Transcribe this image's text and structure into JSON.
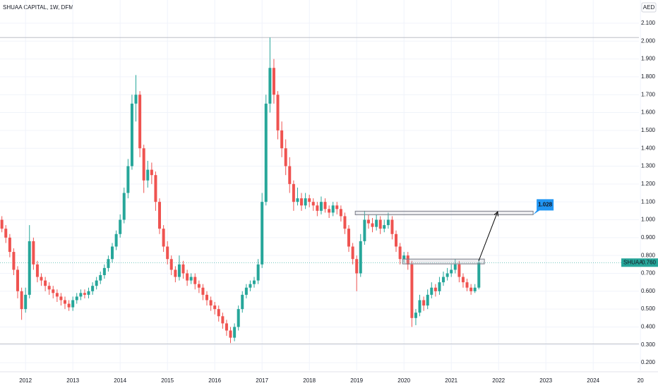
{
  "chart_data": {
    "type": "candlestick",
    "title": "SHUAA CAPITAL, 1W, DFM",
    "currency": "AED",
    "up_color": "#26a69a",
    "down_color": "#ef5350",
    "grid": true,
    "xlim": [
      2011.46,
      2025.37
    ],
    "ylim": [
      0.157,
      2.23
    ],
    "xticks": [
      2012,
      2013,
      2014,
      2015,
      2016,
      2017,
      2018,
      2019,
      2020,
      2021,
      2022,
      2023,
      2024,
      {
        "value": 2025,
        "label": "20"
      }
    ],
    "yticks": [
      {
        "value": 0.2,
        "label": "0.200"
      },
      {
        "value": 0.3,
        "label": "0.300"
      },
      {
        "value": 0.4,
        "label": "0.400"
      },
      {
        "value": 0.5,
        "label": "0.500"
      },
      {
        "value": 0.6,
        "label": "0.600"
      },
      {
        "value": 0.7,
        "label": "0.700"
      },
      {
        "value": 0.8,
        "label": "0.800"
      },
      {
        "value": 0.9,
        "label": "0.900"
      },
      {
        "value": 1.0,
        "label": "1.000"
      },
      {
        "value": 1.1,
        "label": "1.100"
      },
      {
        "value": 1.2,
        "label": "1.200"
      },
      {
        "value": 1.3,
        "label": "1.300"
      },
      {
        "value": 1.4,
        "label": "1.400"
      },
      {
        "value": 1.5,
        "label": "1.500"
      },
      {
        "value": 1.6,
        "label": "1.600"
      },
      {
        "value": 1.7,
        "label": "1.700"
      },
      {
        "value": 1.8,
        "label": "1.800"
      },
      {
        "value": 1.9,
        "label": "1.900"
      },
      {
        "value": 2.0,
        "label": "2.000"
      },
      {
        "value": 2.1,
        "label": "2.100"
      }
    ],
    "x": [
      2011.5,
      2011.583,
      2011.667,
      2011.75,
      2011.833,
      2011.917,
      2012.0,
      2012.083,
      2012.167,
      2012.25,
      2012.333,
      2012.417,
      2012.5,
      2012.583,
      2012.667,
      2012.75,
      2012.833,
      2012.917,
      2013.0,
      2013.083,
      2013.167,
      2013.25,
      2013.333,
      2013.417,
      2013.5,
      2013.583,
      2013.667,
      2013.75,
      2013.833,
      2013.917,
      2014.0,
      2014.083,
      2014.167,
      2014.25,
      2014.333,
      2014.417,
      2014.5,
      2014.583,
      2014.667,
      2014.75,
      2014.833,
      2014.917,
      2015.0,
      2015.083,
      2015.167,
      2015.25,
      2015.333,
      2015.417,
      2015.5,
      2015.583,
      2015.667,
      2015.75,
      2015.833,
      2015.917,
      2016.0,
      2016.083,
      2016.167,
      2016.25,
      2016.333,
      2016.417,
      2016.5,
      2016.583,
      2016.667,
      2016.75,
      2016.833,
      2016.917,
      2017.0,
      2017.083,
      2017.167,
      2017.25,
      2017.333,
      2017.417,
      2017.5,
      2017.583,
      2017.667,
      2017.75,
      2017.833,
      2017.917,
      2018.0,
      2018.083,
      2018.167,
      2018.25,
      2018.333,
      2018.417,
      2018.5,
      2018.583,
      2018.667,
      2018.75,
      2018.833,
      2018.917,
      2019.0,
      2019.083,
      2019.167,
      2019.25,
      2019.333,
      2019.417,
      2019.5,
      2019.583,
      2019.667,
      2019.75,
      2019.833,
      2019.917,
      2020.0,
      2020.083,
      2020.167,
      2020.25,
      2020.333,
      2020.417,
      2020.5,
      2020.583,
      2020.667,
      2020.75,
      2020.833,
      2020.917,
      2021.0,
      2021.083,
      2021.167,
      2021.25,
      2021.333,
      2021.417,
      2021.5,
      2021.583
    ],
    "ohlc": [
      [
        1.0,
        1.02,
        0.93,
        0.95
      ],
      [
        0.95,
        0.97,
        0.87,
        0.9
      ],
      [
        0.9,
        0.92,
        0.79,
        0.82
      ],
      [
        0.82,
        0.84,
        0.69,
        0.72
      ],
      [
        0.72,
        0.74,
        0.56,
        0.6
      ],
      [
        0.6,
        0.62,
        0.44,
        0.5
      ],
      [
        0.5,
        0.62,
        0.48,
        0.58
      ],
      [
        0.58,
        0.97,
        0.56,
        0.88
      ],
      [
        0.88,
        0.9,
        0.72,
        0.75
      ],
      [
        0.75,
        0.77,
        0.65,
        0.68
      ],
      [
        0.68,
        0.7,
        0.63,
        0.66
      ],
      [
        0.66,
        0.68,
        0.6,
        0.63
      ],
      [
        0.63,
        0.65,
        0.58,
        0.61
      ],
      [
        0.61,
        0.63,
        0.56,
        0.59
      ],
      [
        0.59,
        0.61,
        0.54,
        0.57
      ],
      [
        0.57,
        0.59,
        0.52,
        0.55
      ],
      [
        0.55,
        0.57,
        0.5,
        0.53
      ],
      [
        0.53,
        0.55,
        0.49,
        0.51
      ],
      [
        0.51,
        0.57,
        0.49,
        0.55
      ],
      [
        0.55,
        0.59,
        0.53,
        0.57
      ],
      [
        0.57,
        0.61,
        0.55,
        0.59
      ],
      [
        0.59,
        0.61,
        0.56,
        0.58
      ],
      [
        0.58,
        0.62,
        0.56,
        0.6
      ],
      [
        0.6,
        0.65,
        0.58,
        0.63
      ],
      [
        0.63,
        0.68,
        0.61,
        0.66
      ],
      [
        0.66,
        0.71,
        0.64,
        0.69
      ],
      [
        0.69,
        0.75,
        0.67,
        0.73
      ],
      [
        0.73,
        0.8,
        0.71,
        0.78
      ],
      [
        0.78,
        0.87,
        0.76,
        0.85
      ],
      [
        0.85,
        0.94,
        0.83,
        0.92
      ],
      [
        0.92,
        1.03,
        0.9,
        1.0
      ],
      [
        1.0,
        1.18,
        0.98,
        1.15
      ],
      [
        1.15,
        1.34,
        1.12,
        1.3
      ],
      [
        1.3,
        1.7,
        1.28,
        1.65
      ],
      [
        1.65,
        1.81,
        1.55,
        1.7
      ],
      [
        1.7,
        1.72,
        1.35,
        1.4
      ],
      [
        1.4,
        1.42,
        1.15,
        1.22
      ],
      [
        1.22,
        1.33,
        1.18,
        1.28
      ],
      [
        1.28,
        1.32,
        1.2,
        1.25
      ],
      [
        1.25,
        1.27,
        1.05,
        1.1
      ],
      [
        1.1,
        1.12,
        0.92,
        0.95
      ],
      [
        0.95,
        0.97,
        0.82,
        0.85
      ],
      [
        0.85,
        0.88,
        0.75,
        0.78
      ],
      [
        0.78,
        0.8,
        0.69,
        0.72
      ],
      [
        0.72,
        0.74,
        0.65,
        0.68
      ],
      [
        0.68,
        0.8,
        0.66,
        0.75
      ],
      [
        0.75,
        0.77,
        0.67,
        0.7
      ],
      [
        0.7,
        0.72,
        0.63,
        0.66
      ],
      [
        0.66,
        0.7,
        0.64,
        0.68
      ],
      [
        0.68,
        0.7,
        0.61,
        0.64
      ],
      [
        0.64,
        0.66,
        0.59,
        0.62
      ],
      [
        0.62,
        0.64,
        0.55,
        0.58
      ],
      [
        0.58,
        0.6,
        0.52,
        0.55
      ],
      [
        0.55,
        0.57,
        0.49,
        0.52
      ],
      [
        0.52,
        0.54,
        0.47,
        0.5
      ],
      [
        0.5,
        0.52,
        0.43,
        0.46
      ],
      [
        0.46,
        0.48,
        0.39,
        0.42
      ],
      [
        0.42,
        0.44,
        0.35,
        0.38
      ],
      [
        0.38,
        0.4,
        0.31,
        0.34
      ],
      [
        0.34,
        0.42,
        0.32,
        0.4
      ],
      [
        0.4,
        0.52,
        0.38,
        0.5
      ],
      [
        0.5,
        0.6,
        0.48,
        0.58
      ],
      [
        0.58,
        0.64,
        0.56,
        0.62
      ],
      [
        0.62,
        0.66,
        0.6,
        0.64
      ],
      [
        0.64,
        0.68,
        0.62,
        0.66
      ],
      [
        0.66,
        0.78,
        0.64,
        0.75
      ],
      [
        0.75,
        1.15,
        0.73,
        1.1
      ],
      [
        1.1,
        1.7,
        1.08,
        1.65
      ],
      [
        1.65,
        2.02,
        1.6,
        1.85
      ],
      [
        1.85,
        1.9,
        1.65,
        1.7
      ],
      [
        1.7,
        1.72,
        1.45,
        1.5
      ],
      [
        1.5,
        1.55,
        1.35,
        1.4
      ],
      [
        1.4,
        1.45,
        1.25,
        1.3
      ],
      [
        1.3,
        1.35,
        1.15,
        1.2
      ],
      [
        1.2,
        1.22,
        1.05,
        1.1
      ],
      [
        1.1,
        1.18,
        1.08,
        1.12
      ],
      [
        1.12,
        1.15,
        1.05,
        1.08
      ],
      [
        1.08,
        1.15,
        1.06,
        1.12
      ],
      [
        1.12,
        1.14,
        1.07,
        1.1
      ],
      [
        1.1,
        1.12,
        1.05,
        1.08
      ],
      [
        1.08,
        1.1,
        1.02,
        1.05
      ],
      [
        1.05,
        1.13,
        1.03,
        1.1
      ],
      [
        1.1,
        1.12,
        1.04,
        1.06
      ],
      [
        1.06,
        1.08,
        1.01,
        1.04
      ],
      [
        1.04,
        1.1,
        1.02,
        1.08
      ],
      [
        1.08,
        1.1,
        1.03,
        1.06
      ],
      [
        1.06,
        1.08,
        0.99,
        1.02
      ],
      [
        1.02,
        1.04,
        0.92,
        0.95
      ],
      [
        0.95,
        0.97,
        0.82,
        0.85
      ],
      [
        0.85,
        0.87,
        0.75,
        0.78
      ],
      [
        0.78,
        0.8,
        0.6,
        0.7
      ],
      [
        0.7,
        0.92,
        0.68,
        0.88
      ],
      [
        0.88,
        1.05,
        0.86,
        1.0
      ],
      [
        1.0,
        1.03,
        0.95,
        0.98
      ],
      [
        0.98,
        1.01,
        0.93,
        0.96
      ],
      [
        0.96,
        1.03,
        0.94,
        1.0
      ],
      [
        1.0,
        1.02,
        0.92,
        0.95
      ],
      [
        0.95,
        1.0,
        0.93,
        0.97
      ],
      [
        0.97,
        1.04,
        0.95,
        1.0
      ],
      [
        1.0,
        1.02,
        0.89,
        0.92
      ],
      [
        0.92,
        0.94,
        0.82,
        0.85
      ],
      [
        0.85,
        0.87,
        0.75,
        0.78
      ],
      [
        0.78,
        0.82,
        0.76,
        0.8
      ],
      [
        0.8,
        0.82,
        0.72,
        0.75
      ],
      [
        0.75,
        0.77,
        0.4,
        0.45
      ],
      [
        0.45,
        0.5,
        0.41,
        0.48
      ],
      [
        0.48,
        0.58,
        0.46,
        0.55
      ],
      [
        0.55,
        0.57,
        0.49,
        0.52
      ],
      [
        0.52,
        0.61,
        0.5,
        0.58
      ],
      [
        0.58,
        0.65,
        0.56,
        0.62
      ],
      [
        0.62,
        0.64,
        0.57,
        0.6
      ],
      [
        0.6,
        0.68,
        0.58,
        0.65
      ],
      [
        0.65,
        0.71,
        0.63,
        0.68
      ],
      [
        0.68,
        0.73,
        0.66,
        0.7
      ],
      [
        0.7,
        0.75,
        0.68,
        0.72
      ],
      [
        0.72,
        0.78,
        0.7,
        0.75
      ],
      [
        0.75,
        0.77,
        0.65,
        0.68
      ],
      [
        0.68,
        0.7,
        0.62,
        0.65
      ],
      [
        0.65,
        0.67,
        0.6,
        0.62
      ],
      [
        0.62,
        0.64,
        0.58,
        0.6
      ],
      [
        0.6,
        0.64,
        0.59,
        0.62
      ],
      [
        0.62,
        0.78,
        0.61,
        0.76
      ]
    ],
    "hlines": [
      2.02,
      0.305
    ],
    "zones": [
      {
        "x": [
          2018.97,
          2022.73
        ],
        "y": [
          1.028,
          1.048
        ]
      },
      {
        "x": [
          2019.97,
          2021.7
        ],
        "y": [
          0.753,
          0.78
        ]
      }
    ],
    "arrow": {
      "x": [
        2021.58,
        2021.98
      ],
      "y": [
        0.77,
        1.045
      ]
    },
    "callout": {
      "value": 1.028,
      "label": "1.028"
    },
    "last_price": {
      "symbol": "SHUAA",
      "value": 0.76,
      "label": "0.760"
    }
  }
}
